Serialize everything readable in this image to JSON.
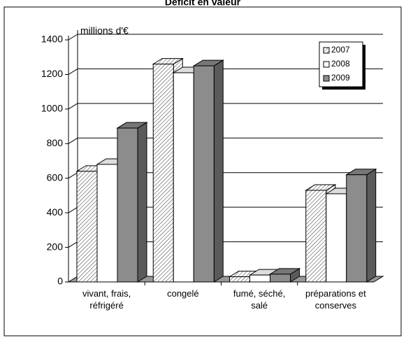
{
  "chart_data": {
    "type": "bar3d",
    "title": "Déficit en valeur",
    "y_label": "millions d'€",
    "categories": [
      "vivant, frais, réfrigéré",
      "congelé",
      "fumé, séché, salé",
      "préparations et conserves"
    ],
    "series": [
      {
        "name": "2007",
        "color": "#ffffff",
        "hatch": true,
        "values": [
          640,
          1260,
          30,
          530
        ]
      },
      {
        "name": "2008",
        "color": "#ffffff",
        "values": [
          680,
          1210,
          40,
          510
        ]
      },
      {
        "name": "2009",
        "color": "#8c8c8c",
        "values": [
          890,
          1250,
          45,
          620
        ]
      }
    ],
    "ylim": [
      0,
      1400
    ],
    "yticks": [
      0,
      200,
      400,
      600,
      800,
      1000,
      1200,
      1400
    ],
    "grid": true,
    "legend": "top-right"
  }
}
